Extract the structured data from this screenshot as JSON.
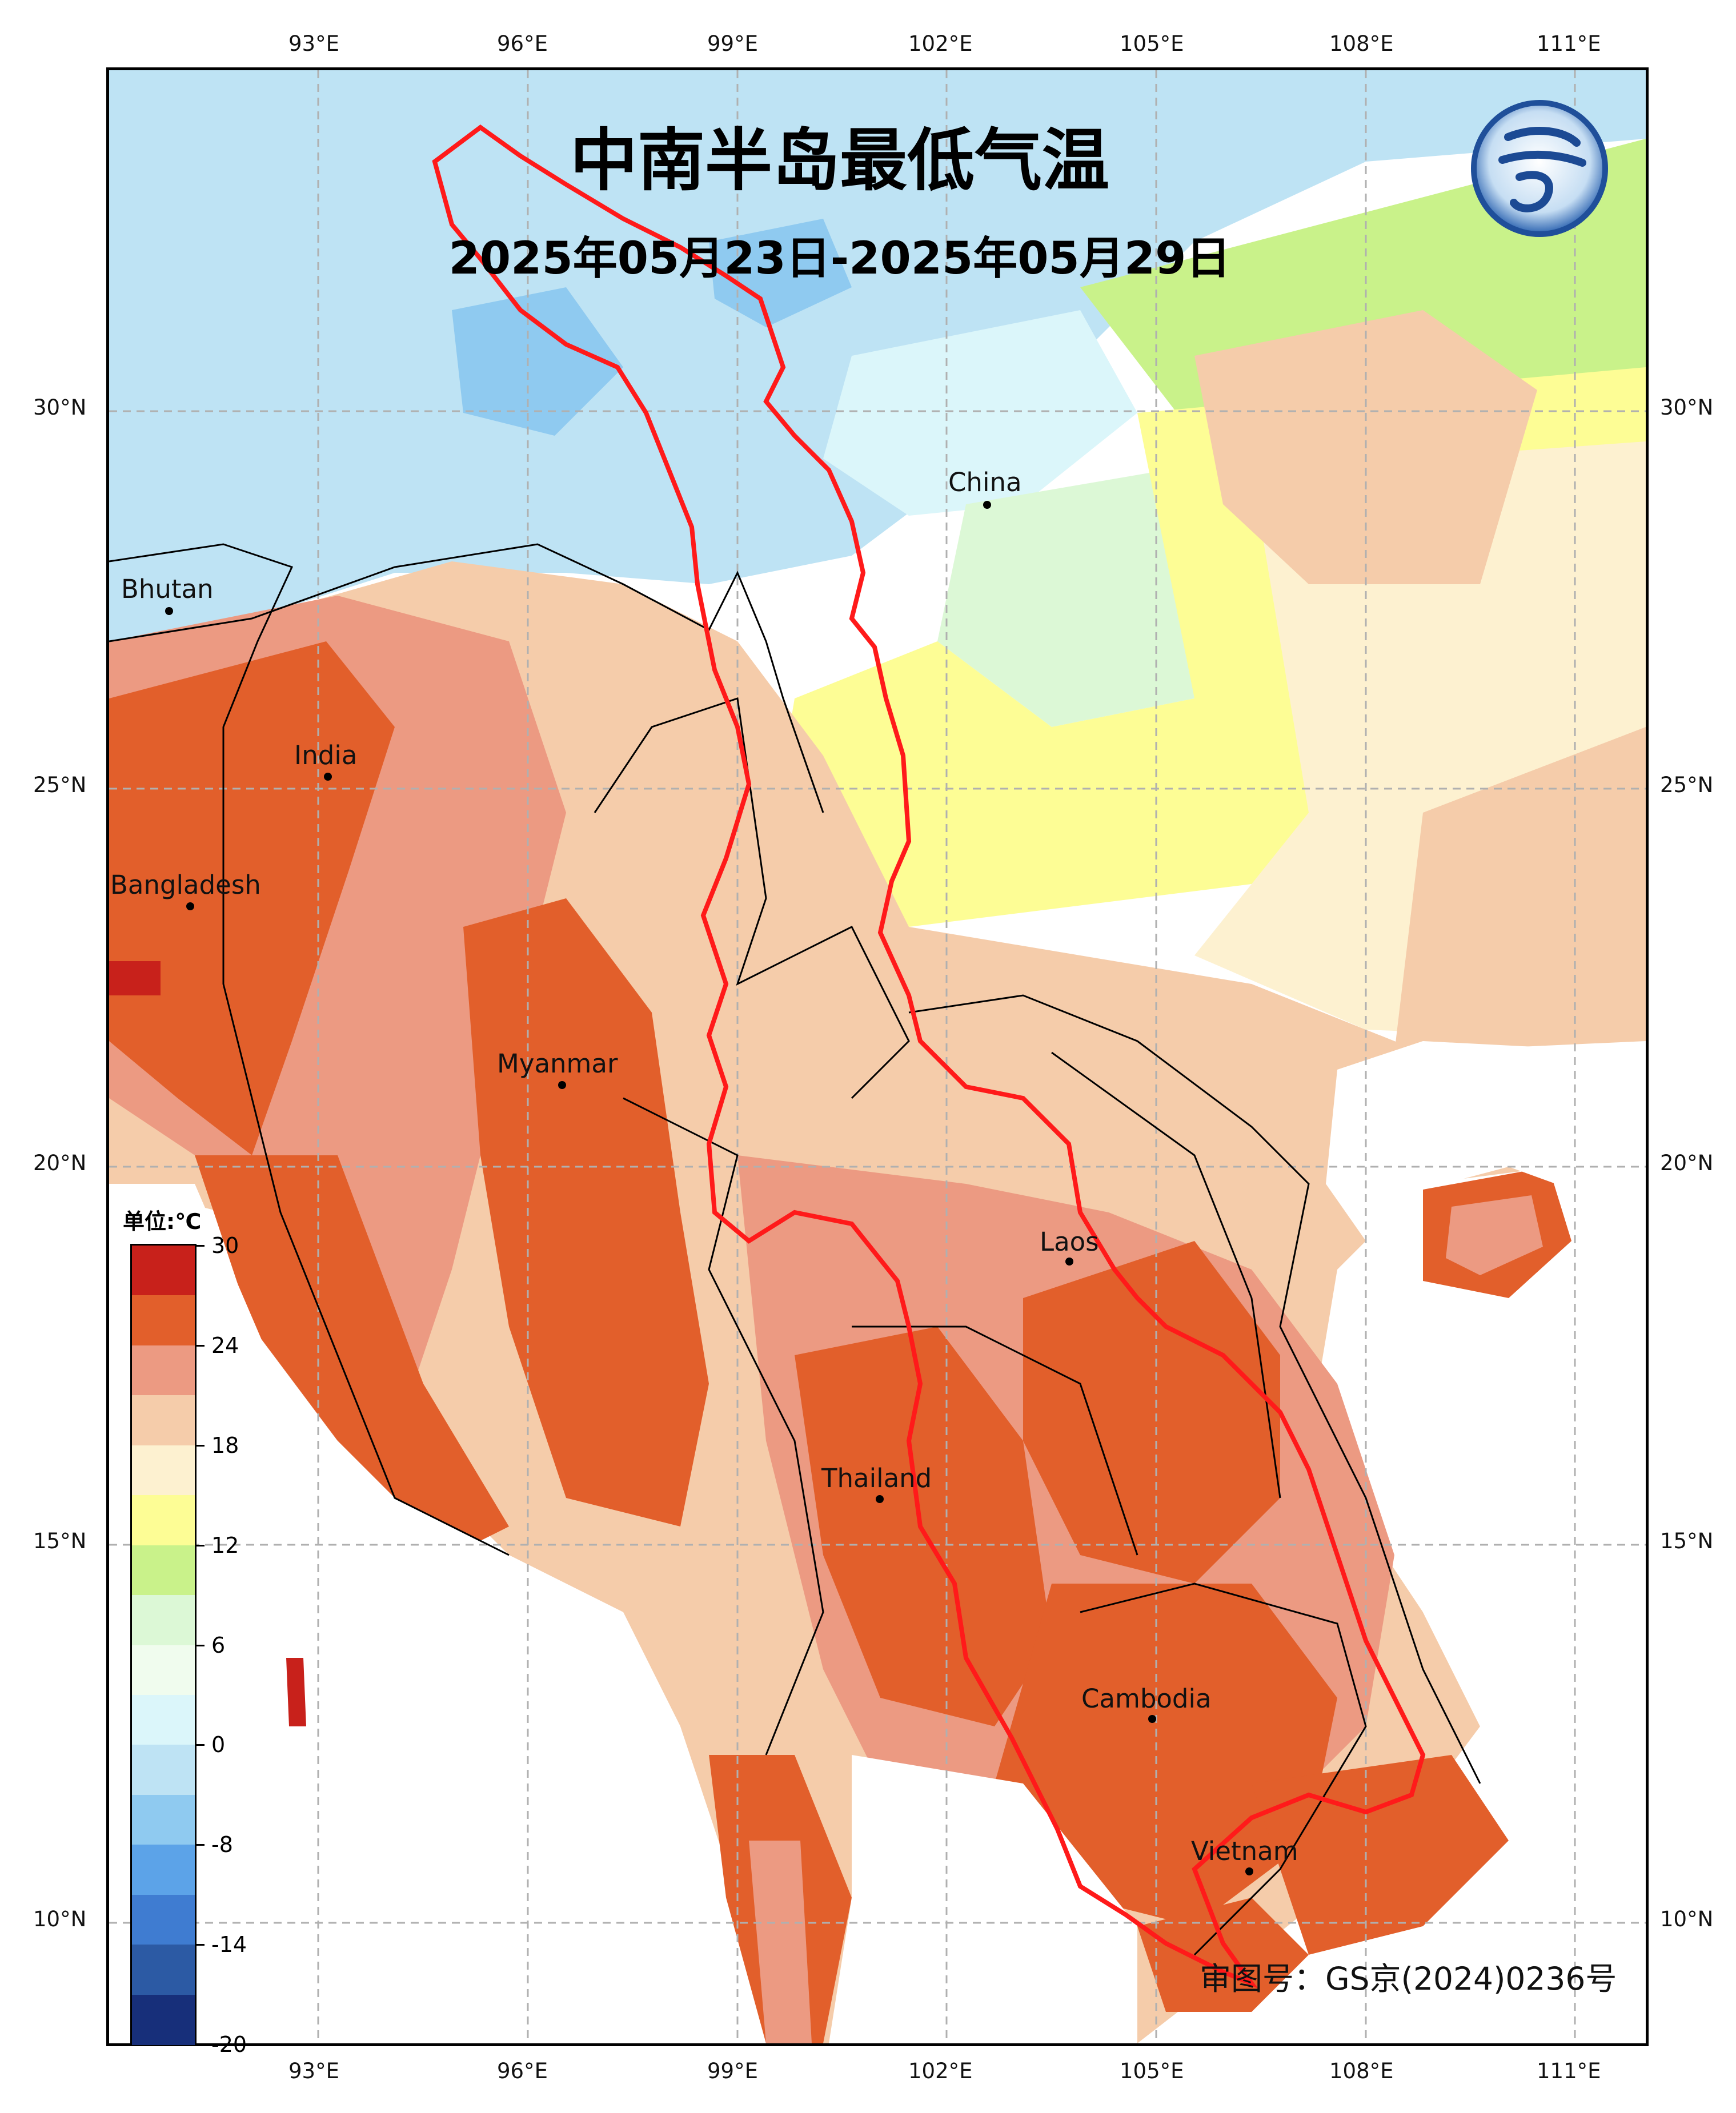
{
  "title": "中南半岛最低气温",
  "date_range": "2025年05月23日-2025年05月29日",
  "review_number": "审图号：GS京(2024)0236号",
  "legend": {
    "unit": "单位:℃",
    "labels": [
      "30",
      "24",
      "18",
      "12",
      "6",
      "0",
      "-8",
      "-14",
      "-20"
    ],
    "colors": [
      "#c8211b",
      "#e25f2b",
      "#ec9a82",
      "#f5ccaa",
      "#fdf1d0",
      "#fdfd95",
      "#c9f28a",
      "#dcf8d6",
      "#f0fcee",
      "#dbf6fa",
      "#bee3f4",
      "#8fcaf0",
      "#5ca3e8",
      "#3f7cd1",
      "#2c5aa4",
      "#172f7a"
    ]
  },
  "axes": {
    "lon_labels": [
      "93°E",
      "96°E",
      "99°E",
      "102°E",
      "105°E",
      "108°E",
      "111°E"
    ],
    "lat_labels": [
      "30°N",
      "25°N",
      "20°N",
      "15°N",
      "10°N"
    ]
  },
  "places": [
    {
      "name": "China"
    },
    {
      "name": "Bhutan"
    },
    {
      "name": "India"
    },
    {
      "name": "Bangladesh"
    },
    {
      "name": "Myanmar"
    },
    {
      "name": "Laos"
    },
    {
      "name": "Thailand"
    },
    {
      "name": "Cambodia"
    },
    {
      "name": "Vietnam"
    }
  ],
  "colors": {
    "basin_boundary": "#ff1a1a",
    "gridline": "#b0b0b0",
    "frame": "#000000"
  }
}
